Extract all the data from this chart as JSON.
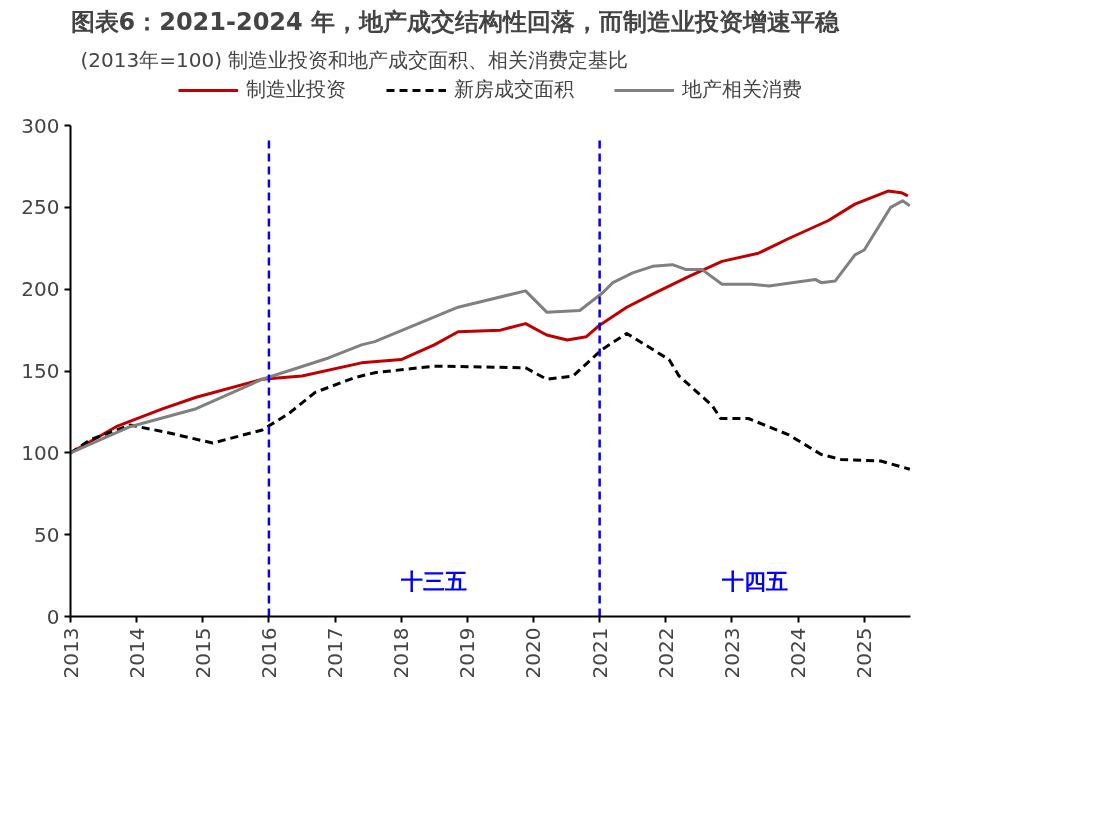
{
  "chart_data": {
    "type": "line",
    "title": "图表6：2021-2024 年，地产成交结构性回落，而制造业投资增速平稳",
    "subtitle": "制造业投资和地产成交面积、相关消费定基比",
    "ylabel": "(2013年=100)",
    "xlim": [
      2013,
      2025.7
    ],
    "xticks": [
      2013,
      2014,
      2015,
      2016,
      2017,
      2018,
      2019,
      2020,
      2021,
      2022,
      2023,
      2024,
      2025
    ],
    "ylim": [
      0,
      300
    ],
    "yticks": [
      0,
      50,
      100,
      150,
      200,
      250,
      300
    ],
    "grid": false,
    "legend": "top",
    "marker": "none",
    "series": [
      {
        "name": "制造业投资",
        "color": "#c00000",
        "line_style": "solid",
        "x": [
          2013,
          2013.69,
          2014.4,
          2014.9,
          2015.9,
          2016.5,
          2017.4,
          2018.0,
          2018.5,
          2018.86,
          2019.5,
          2019.88,
          2020.2,
          2020.51,
          2020.8,
          2021.0,
          2021.41,
          2021.8,
          2022.36,
          2022.85,
          2023.4,
          2023.86,
          2024.46,
          2024.86,
          2025.36,
          2025.56,
          2025.66
        ],
        "values": [
          100,
          116,
          127,
          134,
          145,
          147,
          155,
          157,
          166,
          174,
          175,
          179,
          172,
          169,
          171,
          178,
          189,
          197,
          208,
          217,
          222,
          231,
          242,
          252,
          260,
          259,
          257
        ]
      },
      {
        "name": "新房成交面积",
        "color": "#000000",
        "line_style": "dashed",
        "x": [
          2013,
          2013.3,
          2013.9,
          2014.4,
          2015.15,
          2015.9,
          2016.3,
          2016.7,
          2017.3,
          2017.6,
          2018.5,
          2019.88,
          2020.2,
          2020.6,
          2021.03,
          2021.41,
          2022.05,
          2022.2,
          2022.7,
          2022.83,
          2023.25,
          2023.86,
          2024.35,
          2024.65,
          2025.25,
          2025.69
        ],
        "values": [
          100,
          108,
          117,
          113,
          106,
          114,
          124,
          137,
          146,
          149,
          153,
          152,
          145,
          147,
          163,
          173,
          157,
          147,
          129,
          121,
          121,
          111,
          99,
          96,
          95,
          90
        ]
      },
      {
        "name": "地产相关消费",
        "color": "#808080",
        "line_style": "solid",
        "x": [
          2013,
          2013.9,
          2014.9,
          2015.9,
          2016.9,
          2017.4,
          2017.6,
          2018.86,
          2019.88,
          2020.2,
          2020.7,
          2021.05,
          2021.2,
          2021.5,
          2021.8,
          2022.1,
          2022.31,
          2022.55,
          2022.85,
          2023.3,
          2023.56,
          2024.26,
          2024.35,
          2024.56,
          2024.86,
          2025.0,
          2025.4,
          2025.58,
          2025.69
        ],
        "values": [
          100,
          116,
          127,
          145,
          158,
          166,
          168,
          189,
          199,
          186,
          187,
          198,
          204,
          210,
          214,
          215,
          212,
          212,
          203,
          203,
          202,
          206,
          204,
          205,
          221,
          224,
          250,
          254,
          251
        ]
      }
    ],
    "ref_lines": [
      {
        "axis": "x",
        "value": 2016,
        "color": "#0000ff",
        "line_style": "dashed"
      },
      {
        "axis": "x",
        "value": 2021,
        "color": "#0000ff",
        "line_style": "dashed"
      }
    ],
    "annotations": [
      "十三五",
      "十四五"
    ]
  }
}
